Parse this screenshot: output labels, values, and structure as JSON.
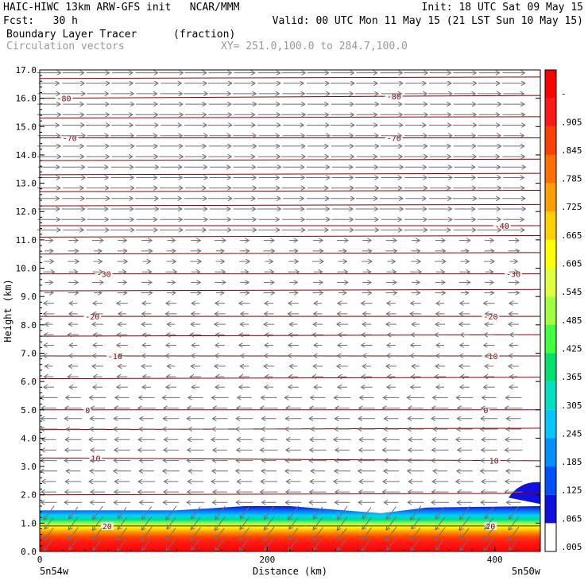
{
  "header": {
    "left_line1": "HAIC-HIWC 13km ARW-GFS init   NCAR/MMM",
    "left_line2": "Fcst:   30 h",
    "field_name": "Boundary Layer Tracer",
    "field_units": "(fraction)",
    "overlay_name": "Circulation vectors",
    "xy_range": "XY= 251.0,100.0 to 284.7,100.0",
    "init": "Init: 18 UTC Sat 09 May 15",
    "valid": "Valid: 00 UTC Mon 11 May 15 (21 LST Sun 10 May 15)"
  },
  "chart_data": {
    "type": "heatmap",
    "xlabel": "Distance (km)",
    "ylabel": "Height (km)",
    "xlim": [
      0,
      440
    ],
    "ylim": [
      0,
      17
    ],
    "x_ticks": [
      0,
      200,
      400
    ],
    "y_ticks": [
      "0.0",
      "1.0",
      "2.0",
      "3.0",
      "4.0",
      "5.0",
      "6.0",
      "7.0",
      "8.0",
      "9.0",
      "10.0",
      "11.0",
      "12.0",
      "13.0",
      "14.0",
      "15.0",
      "16.0",
      "17.0"
    ],
    "x_endpoint_labels": {
      "left": "5n54w",
      "right": "5n50w"
    },
    "colorbar": {
      "labels": [
        ".005",
        ".065",
        ".125",
        ".185",
        ".245",
        ".305",
        ".365",
        ".425",
        ".485",
        ".545",
        ".605",
        ".665",
        ".725",
        ".785",
        ".845",
        ".905",
        "-"
      ],
      "colors": [
        "#ffffff",
        "#1010e0",
        "#0050ff",
        "#0090ff",
        "#00c8ff",
        "#00e0c0",
        "#00e070",
        "#40ff40",
        "#a0ff40",
        "#e0ff40",
        "#ffff00",
        "#ffd000",
        "#ffa000",
        "#ff7000",
        "#ff4000",
        "#ff1818",
        "#ff0000"
      ]
    },
    "tracer_top_km": [
      [
        0,
        1.45
      ],
      [
        120,
        1.45
      ],
      [
        180,
        1.6
      ],
      [
        220,
        1.6
      ],
      [
        300,
        1.35
      ],
      [
        340,
        1.55
      ],
      [
        440,
        1.6
      ]
    ],
    "cap_blob": {
      "x": [
        412,
        440
      ],
      "top_km": 2.5
    },
    "temperature_contours": [
      {
        "label": "-80",
        "height_km": [
          16.0,
          16.1
        ],
        "label_x": [
          15,
          305
        ]
      },
      {
        "label": "-70",
        "height_km": [
          14.6,
          14.6
        ],
        "label_x": [
          20,
          305
        ]
      },
      {
        "label": "-40",
        "height_km": [
          11.5,
          11.5
        ],
        "label_x": [
          400
        ]
      },
      {
        "label": "-30",
        "height_km": [
          9.8,
          9.8
        ],
        "label_x": [
          50,
          410
        ]
      },
      {
        "label": "-20",
        "height_km": [
          8.3,
          8.3
        ],
        "label_x": [
          40,
          390
        ]
      },
      {
        "label": "-10",
        "height_km": [
          6.9,
          6.9
        ],
        "label_x": [
          60,
          390
        ]
      },
      {
        "label": "0",
        "height_km": [
          5.0,
          5.0
        ],
        "label_x": [
          40,
          390
        ]
      },
      {
        "label": "10",
        "height_km": [
          3.3,
          3.2
        ],
        "label_x": [
          45,
          395
        ]
      },
      {
        "label": "20",
        "height_km": [
          0.9,
          0.9
        ],
        "label_x": [
          55,
          392
        ]
      }
    ],
    "unlabeled_contour_heights_km": [
      16.7,
      15.3,
      13.8,
      13.3,
      12.7,
      12.2,
      11.1,
      10.5,
      9.2,
      7.6,
      6.1,
      4.3,
      2.0
    ],
    "wind_vectors": [
      {
        "z_min": 11.0,
        "z_max": 17.0,
        "direction": "east",
        "magnitude": "strong"
      },
      {
        "z_min": 9.0,
        "z_max": 11.0,
        "direction": "east",
        "magnitude": "weak"
      },
      {
        "z_min": 5.5,
        "z_max": 9.0,
        "direction": "west",
        "magnitude": "weak"
      },
      {
        "z_min": 1.5,
        "z_max": 5.5,
        "direction": "west",
        "magnitude": "moderate"
      },
      {
        "z_min": 0.0,
        "z_max": 1.5,
        "direction": "southwest",
        "magnitude": "moderate"
      }
    ]
  }
}
